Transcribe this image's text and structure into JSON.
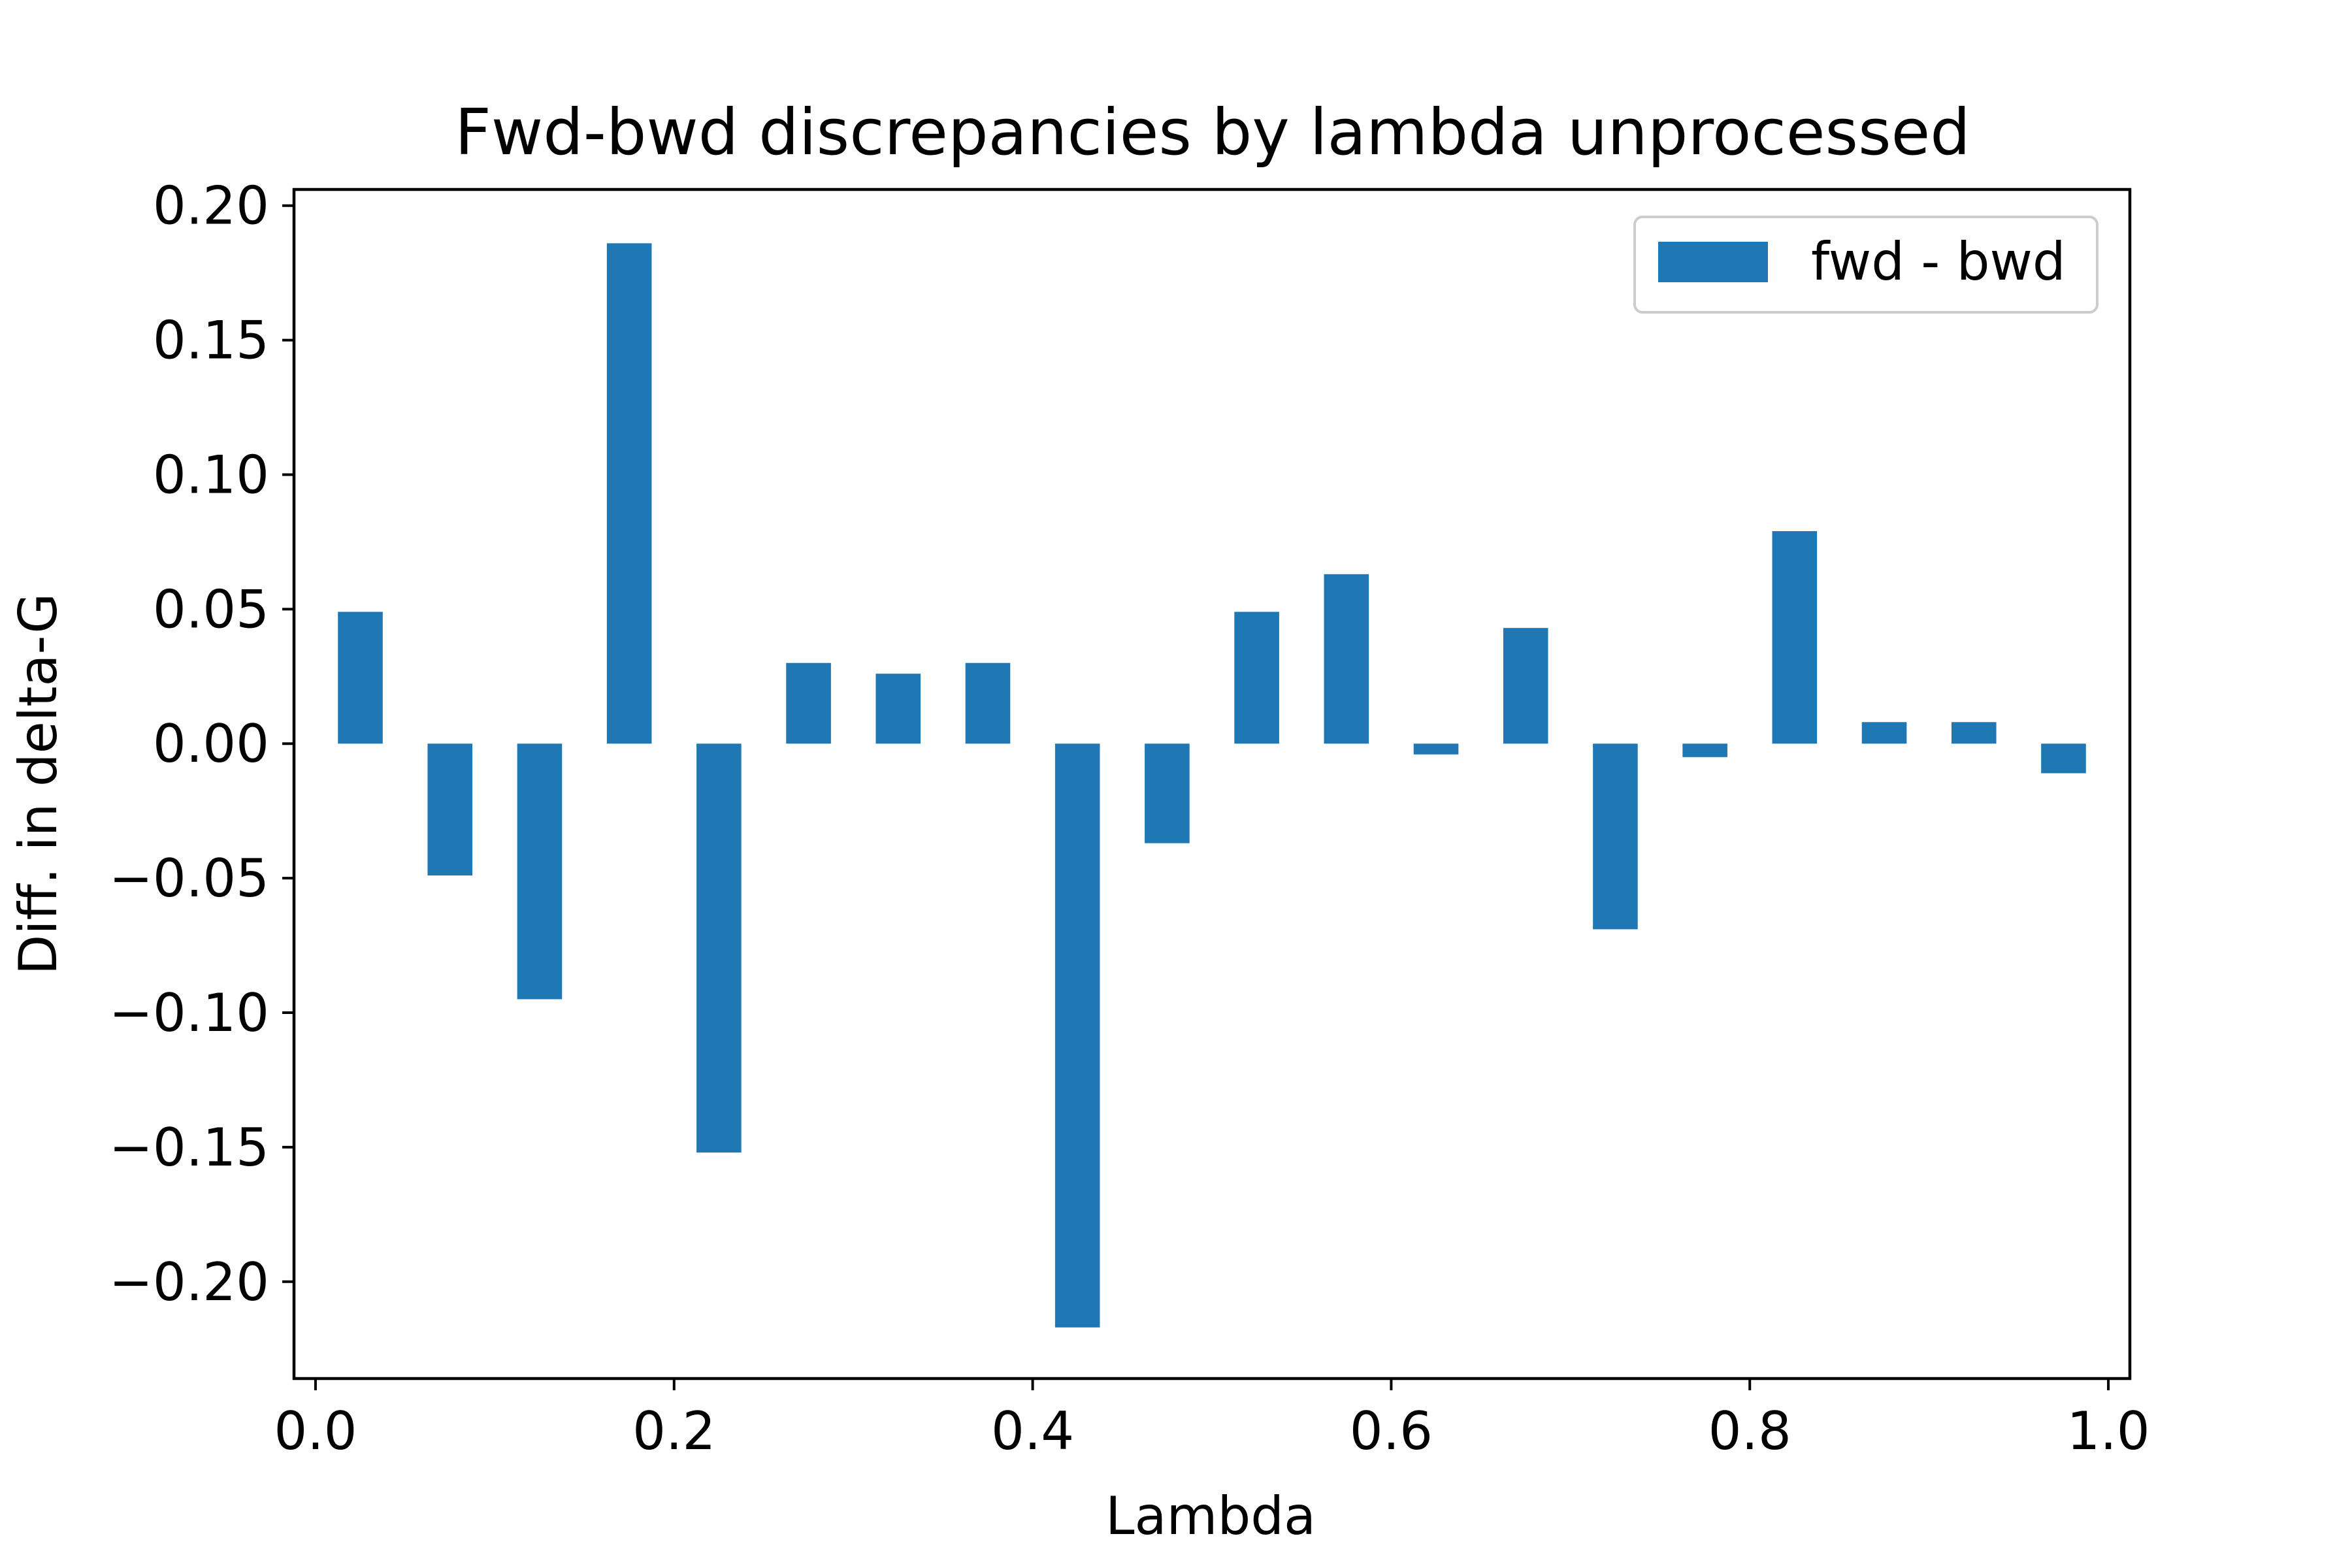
{
  "chart_data": {
    "type": "bar",
    "title": "Fwd-bwd discrepancies by lambda unprocessed",
    "xlabel": "Lambda",
    "ylabel": "Diff. in delta-G",
    "xlim": [
      -0.012,
      1.012
    ],
    "ylim": [
      -0.236,
      0.206
    ],
    "x_ticks": [
      0.0,
      0.2,
      0.4,
      0.6,
      0.8,
      1.0
    ],
    "x_tick_labels": [
      "0.0",
      "0.2",
      "0.4",
      "0.6",
      "0.8",
      "1.0"
    ],
    "y_ticks": [
      0.2,
      0.15,
      0.1,
      0.05,
      0.0,
      -0.05,
      -0.1,
      -0.15,
      -0.2
    ],
    "y_tick_labels": [
      "0.20",
      "0.15",
      "0.10",
      "0.05",
      "0.00",
      "−0.05",
      "−0.10",
      "−0.15",
      "−0.20"
    ],
    "bar_width": 0.025,
    "x": [
      0.025,
      0.075,
      0.125,
      0.175,
      0.225,
      0.275,
      0.325,
      0.375,
      0.425,
      0.475,
      0.525,
      0.575,
      0.625,
      0.675,
      0.725,
      0.775,
      0.825,
      0.875,
      0.925,
      0.975
    ],
    "series": [
      {
        "name": "fwd - bwd",
        "color": "#1f77b4",
        "values": [
          0.049,
          -0.049,
          -0.095,
          0.186,
          -0.152,
          0.03,
          0.026,
          0.03,
          -0.217,
          -0.037,
          0.049,
          0.063,
          -0.004,
          0.043,
          -0.069,
          -0.005,
          0.079,
          0.008,
          0.008,
          -0.011
        ]
      }
    ],
    "legend": "top-right",
    "grid": false
  }
}
